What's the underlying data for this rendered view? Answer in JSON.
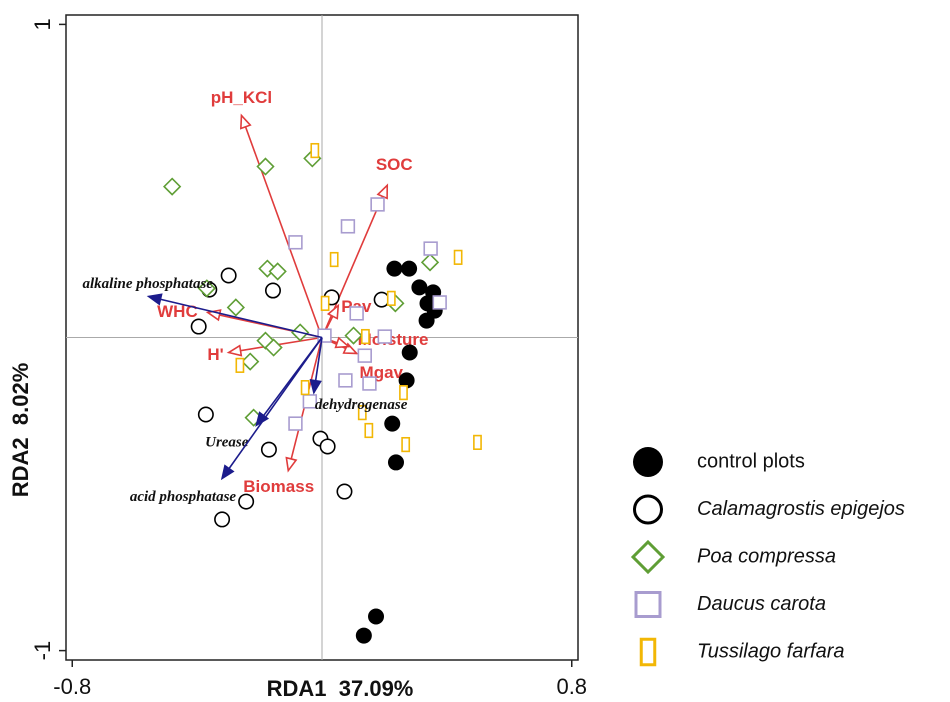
{
  "chart_data": {
    "type": "biplot",
    "x_label": "RDA1  37.09%",
    "y_label": "RDA2  8.02%",
    "xlim": [
      -0.82,
      0.82
    ],
    "ylim": [
      -1.03,
      1.03
    ],
    "xticks": [
      -0.8,
      0.8
    ],
    "yticks": [
      -1.0,
      1.0
    ],
    "origin_lines": true,
    "series": [
      {
        "name": "control plots",
        "marker": "filled-circle",
        "color": "#000000",
        "x": [
          0.232,
          0.279,
          0.312,
          0.356,
          0.338,
          0.361,
          0.335,
          0.281,
          0.271,
          0.225,
          0.237,
          0.173,
          0.134
        ],
        "y": [
          0.22,
          0.22,
          0.16,
          0.144,
          0.109,
          0.086,
          0.054,
          -0.048,
          -0.137,
          -0.275,
          -0.399,
          -0.891,
          -0.952
        ]
      },
      {
        "name": "Calamagrostis epigejos",
        "marker": "circle",
        "color": "#000000",
        "x": [
          -0.299,
          -0.157,
          -0.361,
          -0.395,
          -0.372,
          -0.17,
          -0.243,
          -0.32,
          -0.005,
          0.018,
          0.072,
          0.031,
          0.191
        ],
        "y": [
          0.198,
          0.15,
          0.153,
          0.035,
          -0.246,
          -0.358,
          -0.524,
          -0.581,
          -0.323,
          -0.348,
          -0.492,
          0.128,
          0.121
        ]
      },
      {
        "name": "Poa compressa",
        "marker": "diamond",
        "color": "#5f9e35",
        "x": [
          -0.48,
          -0.181,
          -0.031,
          -0.175,
          -0.142,
          -0.369,
          -0.276,
          -0.181,
          -0.155,
          -0.23,
          -0.07,
          0.101,
          0.235,
          0.346,
          -0.219
        ],
        "y": [
          0.482,
          0.546,
          0.572,
          0.22,
          0.211,
          0.157,
          0.096,
          -0.01,
          -0.032,
          -0.077,
          0.016,
          0.006,
          0.109,
          0.24,
          -0.256
        ]
      },
      {
        "name": "Daucus carota",
        "marker": "square",
        "color": "#a89ccf",
        "x": [
          -0.085,
          0.083,
          0.178,
          0.348,
          0.377,
          0.008,
          0.201,
          0.137,
          0.075,
          0.152,
          -0.039,
          -0.085,
          0.111
        ],
        "y": [
          0.304,
          0.355,
          0.425,
          0.284,
          0.112,
          0.006,
          0.003,
          -0.058,
          -0.137,
          -0.147,
          -0.204,
          -0.275,
          0.077
        ]
      },
      {
        "name": "Tussilago farfara",
        "marker": "tall-rect",
        "color": "#f2b705",
        "x": [
          -0.023,
          0.039,
          0.436,
          0.01,
          0.222,
          0.139,
          -0.263,
          -0.054,
          0.129,
          0.15,
          0.268,
          0.498,
          0.261
        ],
        "y": [
          0.597,
          0.249,
          0.256,
          0.109,
          0.125,
          0.003,
          -0.089,
          -0.16,
          -0.24,
          -0.297,
          -0.342,
          -0.335,
          -0.176
        ]
      }
    ],
    "env_vectors": {
      "color": "#e03c3c",
      "items": [
        {
          "label": "pH_KCl",
          "x": -0.258,
          "y": 0.709
        },
        {
          "label": "SOC",
          "x": 0.209,
          "y": 0.486
        },
        {
          "label": "WHC",
          "x": -0.366,
          "y": 0.08
        },
        {
          "label": "Pav",
          "x": 0.052,
          "y": 0.102
        },
        {
          "label": "Moisture",
          "x": 0.111,
          "y": -0.051
        },
        {
          "label": "Mgav",
          "x": 0.085,
          "y": -0.029
        },
        {
          "label": "H'",
          "x": -0.299,
          "y": -0.048
        },
        {
          "label": "Biomass",
          "x": -0.108,
          "y": -0.425
        }
      ]
    },
    "enzyme_vectors": {
      "color": "#1c1c8c",
      "items": [
        {
          "label": "alkaline phosphatase",
          "x": -0.555,
          "y": 0.131
        },
        {
          "label": "Urease",
          "x": -0.21,
          "y": -0.28
        },
        {
          "label": "acid phosphatase",
          "x": -0.32,
          "y": -0.45
        },
        {
          "label": "dehydrogenase",
          "x": -0.026,
          "y": -0.176
        }
      ]
    }
  }
}
